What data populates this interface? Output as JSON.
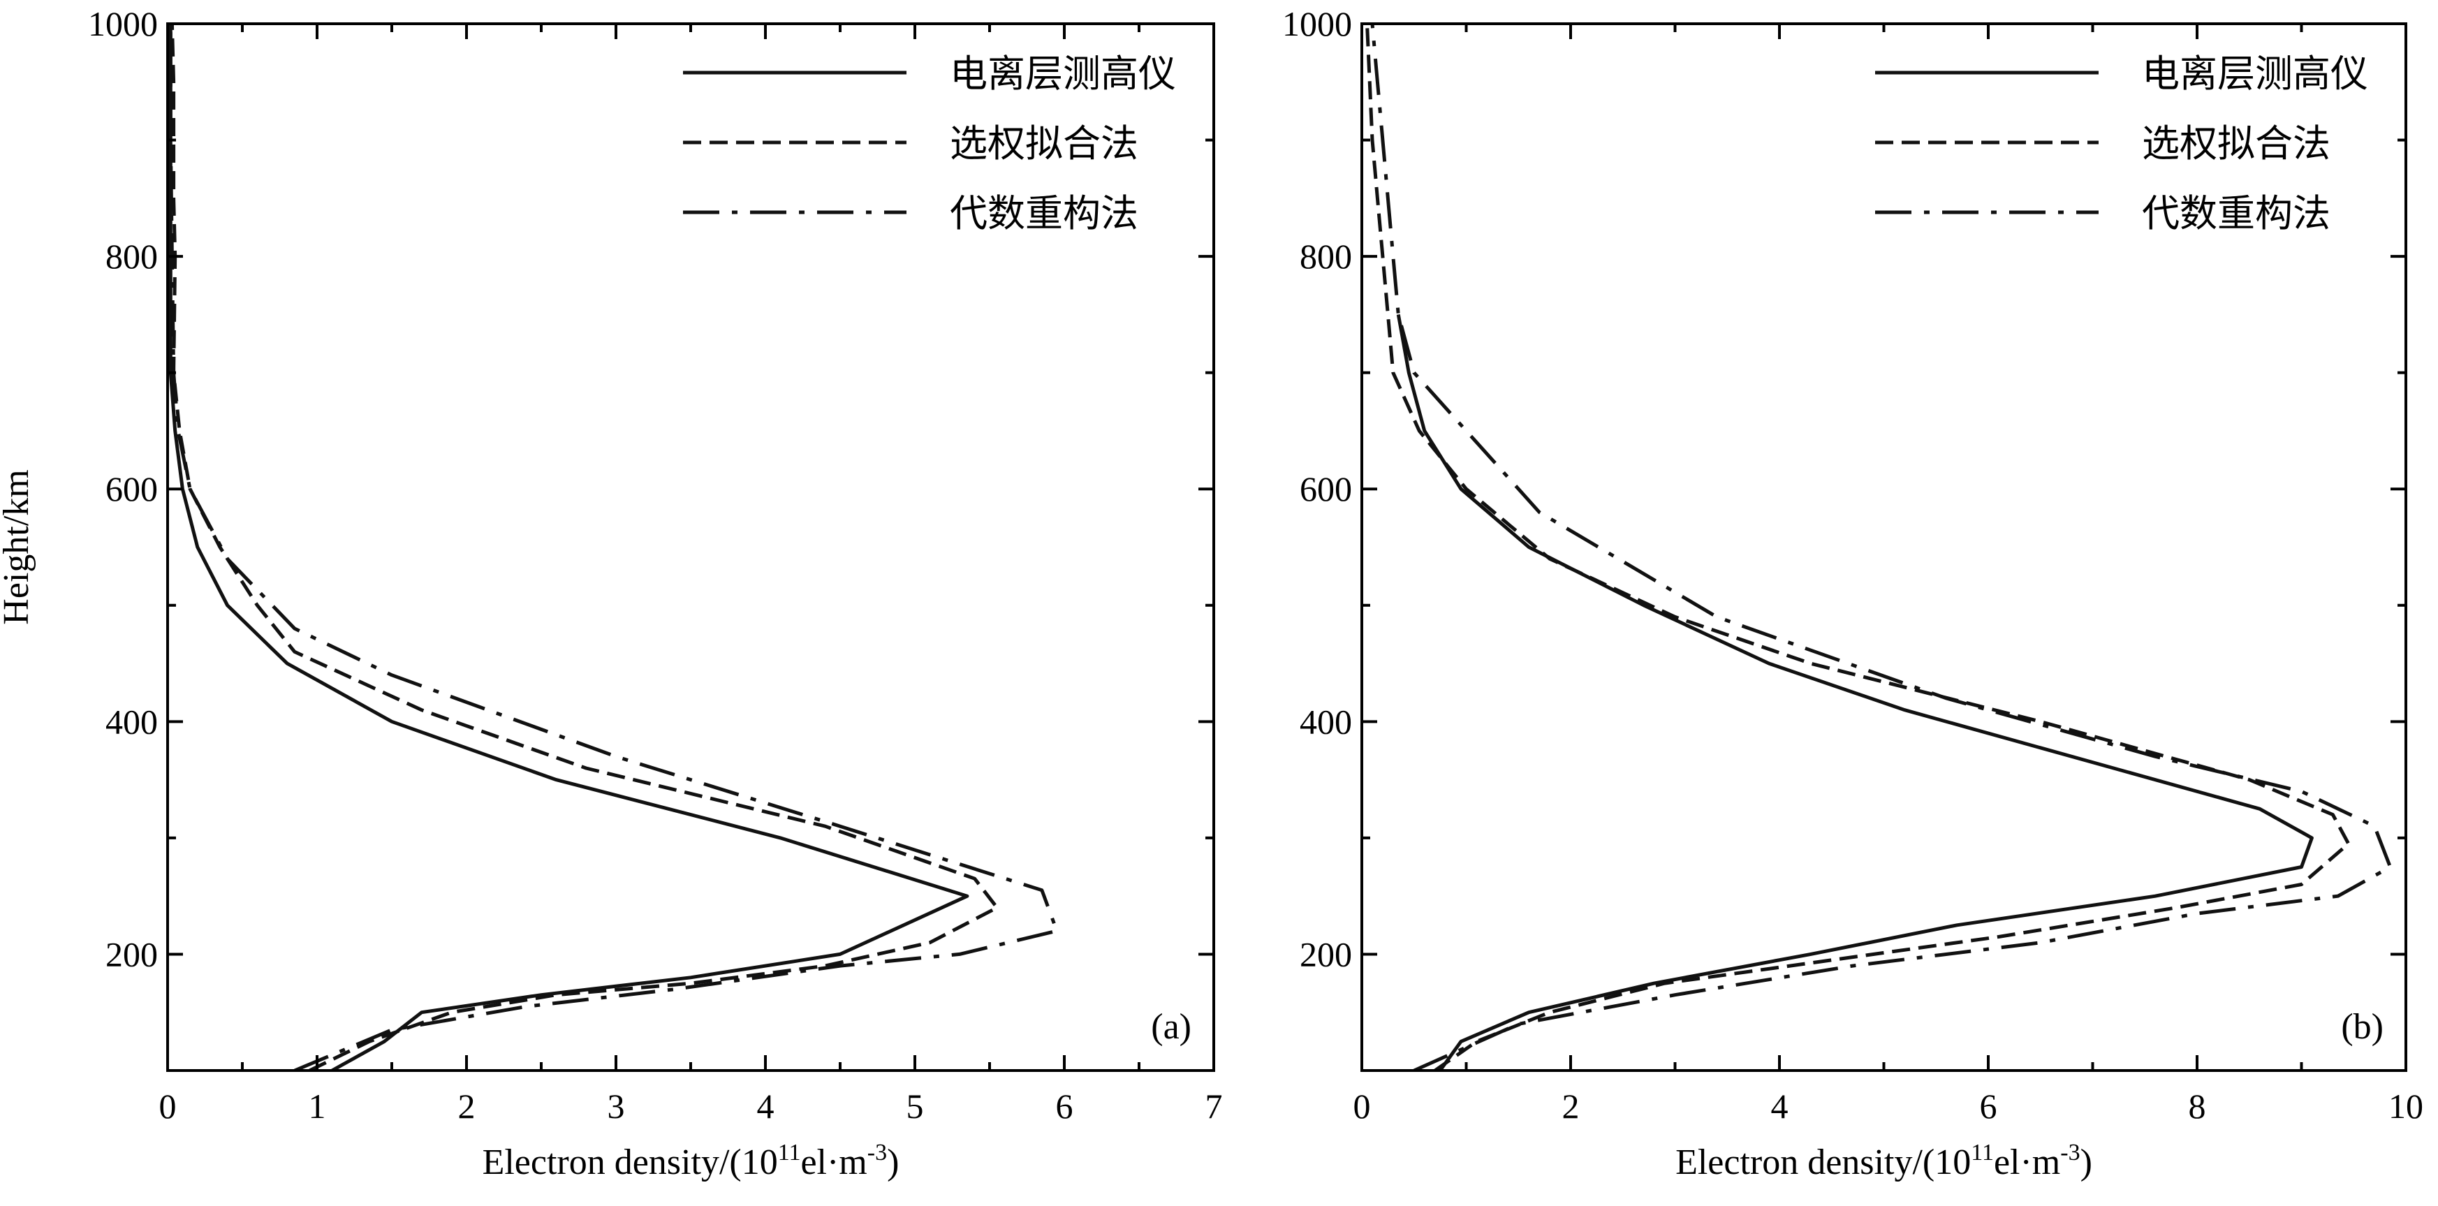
{
  "chart_data": [
    {
      "type": "line",
      "panel_label": "(a)",
      "xlabel_prefix": "Electron density/(10",
      "xlabel_exp": "11",
      "xlabel_mid": "el·m",
      "xlabel_exp2": "-3",
      "xlabel_suffix": ")",
      "ylabel": "Height/km",
      "xlim": [
        0,
        7
      ],
      "ylim": [
        100,
        1000
      ],
      "xticks": [
        "0",
        "1",
        "2",
        "3",
        "4",
        "5",
        "6",
        "7"
      ],
      "yticks": [
        "200",
        "400",
        "600",
        "800",
        "1000"
      ],
      "legend_position": "top-right",
      "series": [
        {
          "name": "电离层测高仪",
          "style": "solid",
          "x": [
            1.1,
            1.45,
            1.7,
            2.5,
            3.5,
            4.5,
            5.35,
            4.1,
            2.6,
            1.5,
            0.8,
            0.4,
            0.2,
            0.1,
            0.05,
            0.02,
            0.02,
            0.02,
            0.02
          ],
          "y": [
            100,
            125,
            150,
            165,
            180,
            200,
            250,
            300,
            350,
            400,
            450,
            500,
            550,
            600,
            650,
            700,
            800,
            900,
            1000
          ]
        },
        {
          "name": "选权拟合法",
          "style": "dashed",
          "x": [
            0.95,
            1.35,
            1.9,
            2.6,
            3.5,
            4.4,
            5.1,
            5.55,
            5.4,
            4.4,
            2.8,
            1.7,
            0.85,
            0.6,
            0.35,
            0.15,
            0.08,
            0.04,
            0.05,
            0.04,
            0.04,
            0.03
          ],
          "y": [
            100,
            125,
            150,
            165,
            175,
            190,
            210,
            240,
            265,
            310,
            360,
            410,
            460,
            500,
            550,
            600,
            650,
            700,
            800,
            850,
            950,
            1000
          ]
        },
        {
          "name": "代数重构法",
          "style": "dashdot",
          "x": [
            0.85,
            1.5,
            2.4,
            3.4,
            4.5,
            5.3,
            5.95,
            5.85,
            4.5,
            3.0,
            1.5,
            0.85,
            0.4,
            0.15,
            0.07,
            0.04,
            0.03,
            0.02,
            0.02
          ],
          "y": [
            100,
            135,
            155,
            170,
            190,
            200,
            220,
            255,
            310,
            370,
            440,
            480,
            540,
            600,
            650,
            700,
            800,
            900,
            1000
          ]
        }
      ]
    },
    {
      "type": "line",
      "panel_label": "(b)",
      "xlabel_prefix": "Electron density/(10",
      "xlabel_exp": "11",
      "xlabel_mid": "el·m",
      "xlabel_exp2": "-3",
      "xlabel_suffix": ")",
      "xlim": [
        0,
        10
      ],
      "ylim": [
        100,
        1000
      ],
      "xticks": [
        "0",
        "2",
        "4",
        "6",
        "8",
        "10"
      ],
      "yticks": [
        "200",
        "400",
        "600",
        "800",
        "1000"
      ],
      "legend_position": "top-right",
      "series": [
        {
          "name": "电离层测高仪",
          "style": "solid",
          "x": [
            0.75,
            0.95,
            1.6,
            2.8,
            4.3,
            5.7,
            7.6,
            9.0,
            9.1,
            8.6,
            7.2,
            5.2,
            3.9,
            2.7,
            1.6,
            0.95,
            0.6,
            0.45,
            0.35
          ],
          "y": [
            100,
            125,
            150,
            175,
            200,
            225,
            250,
            275,
            300,
            325,
            360,
            410,
            450,
            500,
            550,
            600,
            650,
            700,
            750
          ]
        },
        {
          "name": "选权拟合法",
          "style": "dashed",
          "x": [
            0.7,
            1.1,
            1.8,
            2.9,
            4.5,
            6.1,
            7.8,
            9.0,
            9.45,
            9.3,
            8.5,
            6.5,
            4.3,
            3.0,
            1.8,
            1.0,
            0.55,
            0.3,
            0.25,
            0.2,
            0.15,
            0.1,
            0.05
          ],
          "y": [
            100,
            125,
            150,
            175,
            195,
            215,
            240,
            260,
            295,
            320,
            350,
            400,
            450,
            490,
            540,
            600,
            650,
            700,
            750,
            800,
            850,
            900,
            1000
          ]
        },
        {
          "name": "代数重构法",
          "style": "dashdot",
          "x": [
            0.5,
            1.5,
            3.0,
            4.7,
            6.5,
            8.0,
            9.35,
            9.85,
            9.7,
            9.0,
            7.6,
            5.6,
            3.4,
            1.7,
            0.5,
            0.35,
            0.3,
            0.2,
            0.15,
            0.1
          ],
          "y": [
            100,
            140,
            165,
            190,
            210,
            235,
            250,
            275,
            310,
            340,
            370,
            420,
            490,
            580,
            700,
            750,
            800,
            900,
            950,
            1000
          ]
        }
      ]
    }
  ]
}
